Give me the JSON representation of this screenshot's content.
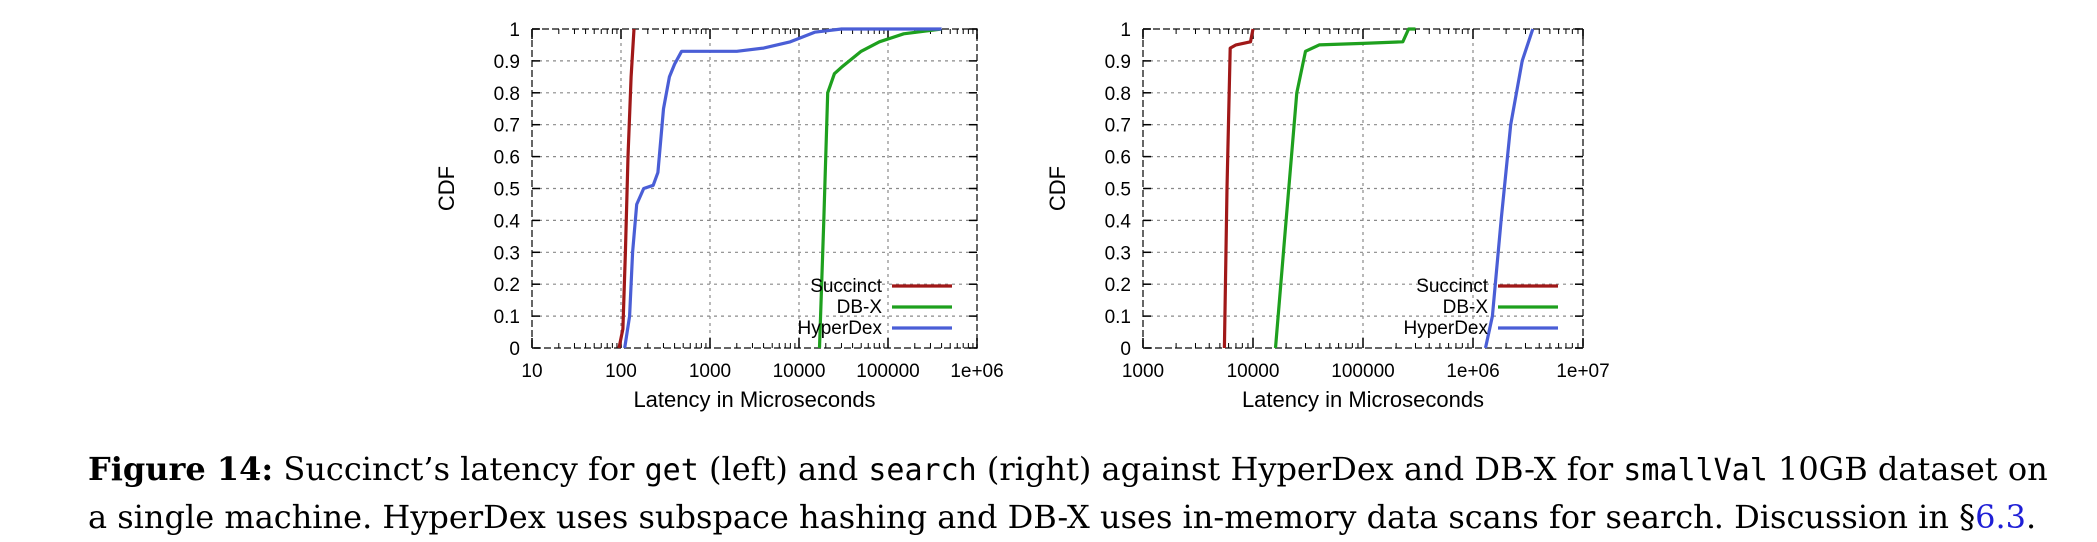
{
  "chart_data": [
    {
      "type": "line",
      "xscale": "log",
      "xlim": [
        10,
        1000000
      ],
      "ylim": [
        0,
        1
      ],
      "xlabel": "Latency in Microseconds",
      "ylabel": "CDF",
      "x_ticks": [
        10,
        100,
        1000,
        10000,
        100000,
        1000000
      ],
      "x_tick_labels": [
        "10",
        "100",
        "1000",
        "10000",
        "100000",
        "1e+06"
      ],
      "y_ticks": [
        0,
        0.1,
        0.2,
        0.3,
        0.4,
        0.5,
        0.6,
        0.7,
        0.8,
        0.9,
        1
      ],
      "y_tick_labels": [
        "0",
        "0.1",
        "0.2",
        "0.3",
        "0.4",
        "0.5",
        "0.6",
        "0.7",
        "0.8",
        "0.9",
        "1"
      ],
      "grid": true,
      "legend_position": "bottom-right",
      "series": [
        {
          "name": "Succinct",
          "color": "#a01818",
          "points": [
            [
              95,
              0
            ],
            [
              105,
              0.06
            ],
            [
              112,
              0.3
            ],
            [
              120,
              0.6
            ],
            [
              130,
              0.85
            ],
            [
              140,
              1
            ]
          ]
        },
        {
          "name": "DB-X",
          "color": "#1ea01e",
          "points": [
            [
              17000,
              0
            ],
            [
              19000,
              0.4
            ],
            [
              21000,
              0.8
            ],
            [
              25000,
              0.86
            ],
            [
              30000,
              0.88
            ],
            [
              50000,
              0.93
            ],
            [
              80000,
              0.96
            ],
            [
              150000,
              0.985
            ],
            [
              400000,
              1
            ]
          ]
        },
        {
          "name": "HyperDex",
          "color": "#4a5ed6",
          "points": [
            [
              110,
              0
            ],
            [
              125,
              0.1
            ],
            [
              135,
              0.3
            ],
            [
              150,
              0.45
            ],
            [
              180,
              0.5
            ],
            [
              230,
              0.51
            ],
            [
              260,
              0.55
            ],
            [
              300,
              0.75
            ],
            [
              350,
              0.85
            ],
            [
              400,
              0.89
            ],
            [
              480,
              0.93
            ],
            [
              700,
              0.93
            ],
            [
              2000,
              0.93
            ],
            [
              4000,
              0.94
            ],
            [
              8000,
              0.96
            ],
            [
              15000,
              0.99
            ],
            [
              30000,
              1
            ],
            [
              400000,
              1
            ]
          ]
        }
      ]
    },
    {
      "type": "line",
      "xscale": "log",
      "xlim": [
        1000,
        10000000
      ],
      "ylim": [
        0,
        1
      ],
      "xlabel": "Latency in Microseconds",
      "ylabel": "CDF",
      "x_ticks": [
        1000,
        10000,
        100000,
        1000000,
        10000000
      ],
      "x_tick_labels": [
        "1000",
        "10000",
        "100000",
        "1e+06",
        "1e+07"
      ],
      "y_ticks": [
        0,
        0.1,
        0.2,
        0.3,
        0.4,
        0.5,
        0.6,
        0.7,
        0.8,
        0.9,
        1
      ],
      "y_tick_labels": [
        "0",
        "0.1",
        "0.2",
        "0.3",
        "0.4",
        "0.5",
        "0.6",
        "0.7",
        "0.8",
        "0.9",
        "1"
      ],
      "grid": true,
      "legend_position": "bottom-right",
      "series": [
        {
          "name": "Succinct",
          "color": "#a01818",
          "points": [
            [
              5500,
              0
            ],
            [
              5800,
              0.5
            ],
            [
              6200,
              0.94
            ],
            [
              7000,
              0.95
            ],
            [
              9500,
              0.96
            ],
            [
              10000,
              1
            ]
          ]
        },
        {
          "name": "DB-X",
          "color": "#1ea01e",
          "points": [
            [
              16000,
              0
            ],
            [
              20000,
              0.4
            ],
            [
              25000,
              0.8
            ],
            [
              30000,
              0.93
            ],
            [
              40000,
              0.95
            ],
            [
              100000,
              0.955
            ],
            [
              230000,
              0.96
            ],
            [
              260000,
              1
            ],
            [
              300000,
              1
            ]
          ]
        },
        {
          "name": "HyperDex",
          "color": "#4a5ed6",
          "points": [
            [
              1300000,
              0
            ],
            [
              1500000,
              0.1
            ],
            [
              1800000,
              0.4
            ],
            [
              2200000,
              0.7
            ],
            [
              2800000,
              0.9
            ],
            [
              3500000,
              1
            ]
          ]
        }
      ]
    }
  ],
  "caption": {
    "label": "Figure 14:",
    "t1": " Succinct’s latency for ",
    "code_get": "get",
    "t2": " (left) and ",
    "code_search": "search",
    "t3": " (right) against HyperDex and DB-X for ",
    "code_smallval": "smallVal",
    "t4": " 10GB dataset on a single machine. HyperDex uses subspace hashing and DB-X uses in-memory data scans for search. Discussion in §",
    "ref": "6.3",
    "t5": "."
  }
}
